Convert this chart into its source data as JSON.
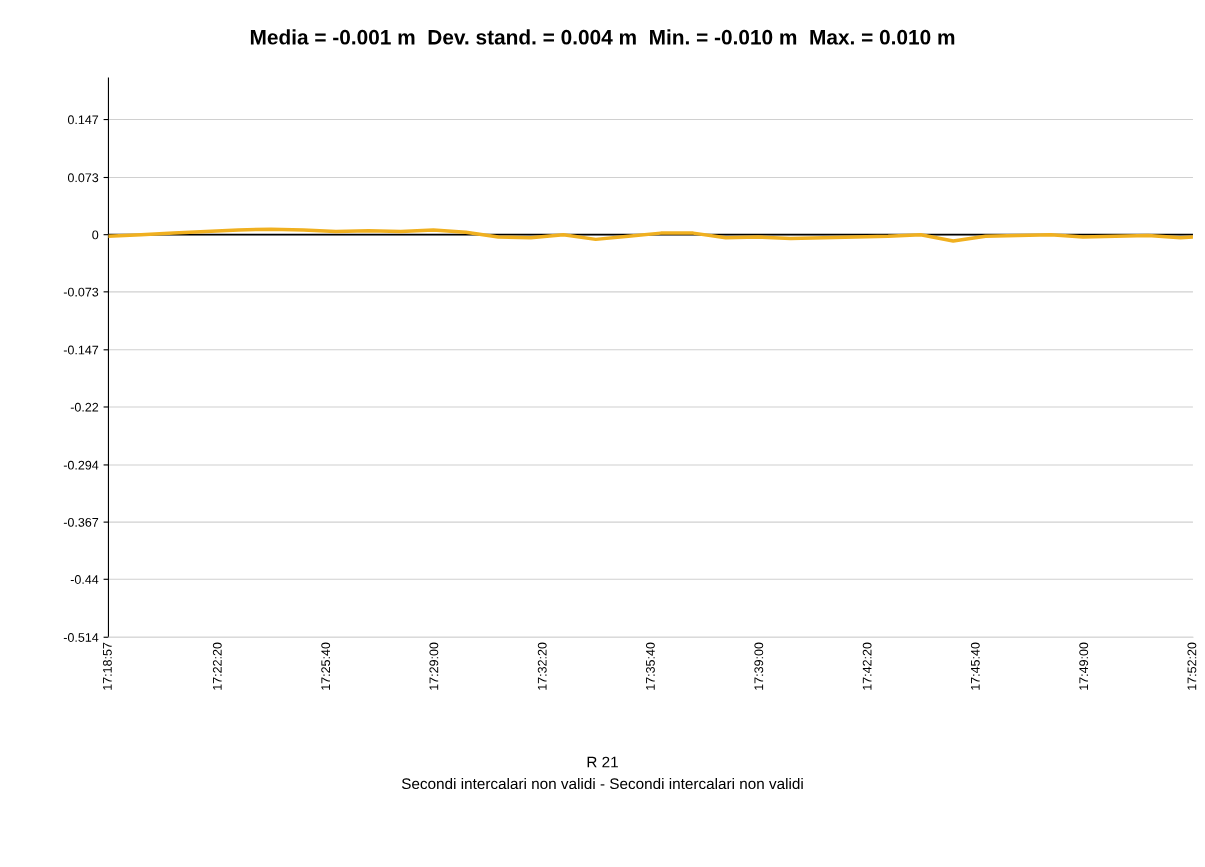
{
  "chart_data": {
    "type": "line",
    "title": "Media = -0.001 m  Dev. stand. = 0.004 m  Min. = -0.010 m  Max. = 0.010 m",
    "xlabel": "R 21",
    "annotations": [
      "Secondi intercalari non validi - Secondi intercalari non validi"
    ],
    "x": [
      17.3158,
      17.3325,
      17.3492,
      17.3658,
      17.3825,
      17.3992,
      17.4158,
      17.4325,
      17.4492,
      17.4658,
      17.4825,
      17.4992,
      17.5158,
      17.5325,
      17.5492,
      17.5658,
      17.5825,
      17.5992,
      17.6158,
      17.6325,
      17.6492,
      17.6658,
      17.6825,
      17.6992,
      17.7158,
      17.7325,
      17.7492,
      17.7658,
      17.7825,
      17.7992,
      17.8158,
      17.8325,
      17.8492,
      17.8658,
      17.8722
    ],
    "series": [
      {
        "color": "#f0b020",
        "values": [
          -0.002,
          0.0,
          0.002,
          0.004,
          0.006,
          0.007,
          0.006,
          0.004,
          0.005,
          0.004,
          0.006,
          0.003,
          -0.003,
          -0.004,
          0.0,
          -0.006,
          -0.002,
          0.002,
          0.002,
          -0.004,
          -0.003,
          -0.005,
          -0.004,
          -0.003,
          -0.002,
          0.0,
          -0.008,
          -0.002,
          -0.001,
          0.0,
          -0.003,
          -0.002,
          -0.001,
          -0.004,
          -0.003
        ]
      }
    ],
    "xlim": [
      17.3158,
      17.8722
    ],
    "xticks": [
      {
        "value": 17.3158,
        "label": "17:18:57"
      },
      {
        "value": 17.3722,
        "label": "17:22:20"
      },
      {
        "value": 17.4278,
        "label": "17:25:40"
      },
      {
        "value": 17.4833,
        "label": "17:29:00"
      },
      {
        "value": 17.5389,
        "label": "17:32:20"
      },
      {
        "value": 17.5944,
        "label": "17:35:40"
      },
      {
        "value": 17.65,
        "label": "17:39:00"
      },
      {
        "value": 17.7056,
        "label": "17:42:20"
      },
      {
        "value": 17.7611,
        "label": "17:45:40"
      },
      {
        "value": 17.8167,
        "label": "17:49:00"
      },
      {
        "value": 17.8722,
        "label": "17:52:20"
      }
    ],
    "ylim": [
      -0.514,
      0.2
    ],
    "yticks": [
      0.147,
      0.073,
      0,
      -0.073,
      -0.147,
      -0.22,
      -0.294,
      -0.367,
      -0.44,
      -0.514
    ],
    "ref_lines": [
      {
        "axis": "y",
        "value": 0,
        "color": "#000000"
      }
    ],
    "grid": "y",
    "legend": false,
    "marker": "none",
    "line_style": "solid"
  }
}
